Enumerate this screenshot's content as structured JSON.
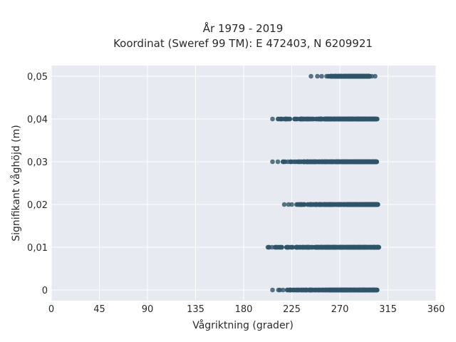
{
  "chart_data": {
    "type": "scatter",
    "title": "År 1979 - 2019",
    "subtitle": "Koordinat (Sweref 99 TM): E 472403, N 6209921",
    "xlabel": "Vågriktning (grader)",
    "ylabel": "Signifikant våghöjd (m)",
    "xlim": [
      0,
      360
    ],
    "ylim": [
      -0.0025,
      0.0525
    ],
    "xticks": [
      0,
      45,
      90,
      135,
      180,
      225,
      270,
      315,
      360
    ],
    "xtick_labels": [
      "0",
      "45",
      "90",
      "135",
      "180",
      "225",
      "270",
      "315",
      "360"
    ],
    "yticks": [
      0,
      0.01,
      0.02,
      0.03,
      0.04,
      0.05
    ],
    "ytick_labels": [
      "0",
      "0,01",
      "0,02",
      "0,03",
      "0,04",
      "0,05"
    ],
    "grid": true,
    "marker_color": "#2f5468",
    "background_color": "#e8eaf2",
    "series": [
      {
        "y": 0.05,
        "x_dense_range": [
          257,
          298
        ],
        "x_outliers": [
          243,
          249,
          253,
          300,
          303
        ]
      },
      {
        "y": 0.04,
        "x_dense_range": [
          212,
          305
        ],
        "x_outliers": [
          207
        ]
      },
      {
        "y": 0.03,
        "x_dense_range": [
          214,
          305
        ],
        "x_outliers": [
          207,
          212
        ]
      },
      {
        "y": 0.02,
        "x_dense_range": [
          227,
          306
        ],
        "x_outliers": [
          218,
          222,
          225
        ]
      },
      {
        "y": 0.01,
        "x_dense_range": [
          201,
          307
        ],
        "x_outliers": []
      },
      {
        "y": 0,
        "x_dense_range": [
          212,
          305
        ],
        "x_outliers": [
          207
        ]
      }
    ]
  }
}
